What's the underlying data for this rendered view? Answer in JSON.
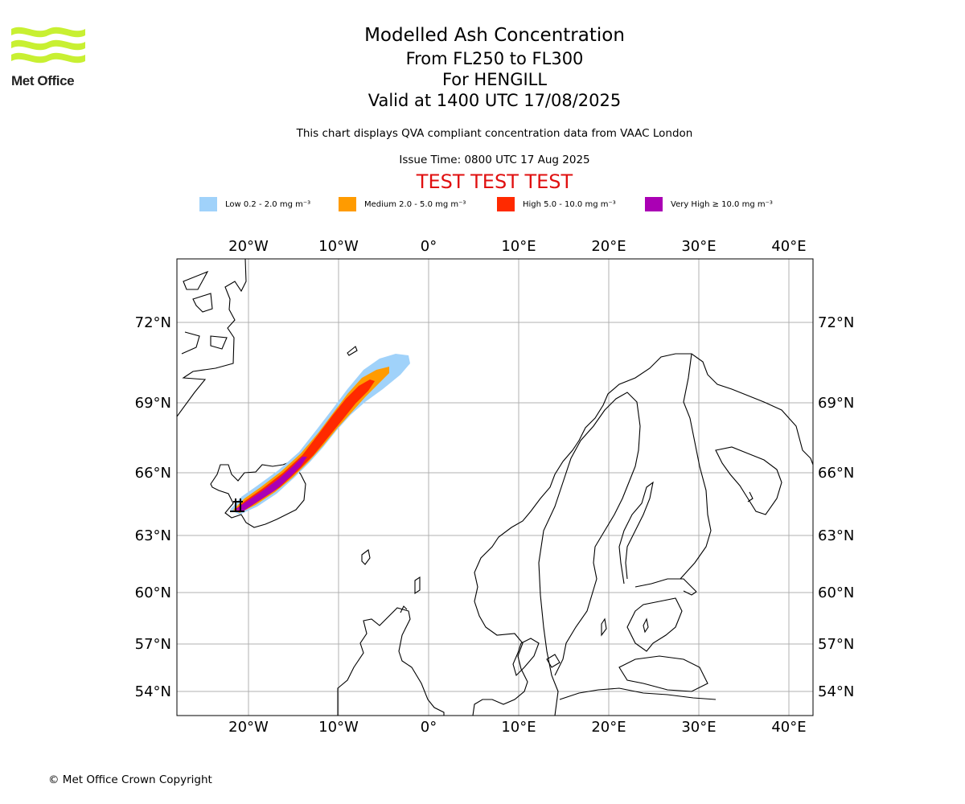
{
  "logo": {
    "text": "Met Office",
    "wave_color": "#c8f032"
  },
  "titles": {
    "line1": "Modelled Ash Concentration",
    "line2": "From FL250 to FL300",
    "line3": "For HENGILL",
    "line4": "Valid at 1400 UTC 17/08/2025"
  },
  "subtitle": "This chart displays QVA compliant concentration data from VAAC London",
  "issue_time": "Issue Time: 0800 UTC 17 Aug 2025",
  "test_banner": "TEST TEST TEST",
  "legend": [
    {
      "label": "Low 0.2 - 2.0 mg m⁻³",
      "color": "#a0d2fa"
    },
    {
      "label": "Medium 2.0 - 5.0 mg m⁻³",
      "color": "#ff9b00"
    },
    {
      "label": "High 5.0 - 10.0 mg m⁻³",
      "color": "#ff2a00"
    },
    {
      "label": "Very High ≥ 10.0 mg m⁻³",
      "color": "#aa00b4"
    }
  ],
  "map": {
    "lon_labels": [
      "20°W",
      "10°W",
      "0°",
      "10°E",
      "20°E",
      "30°E",
      "40°E"
    ],
    "lat_labels": [
      "72°N",
      "69°N",
      "66°N",
      "63°N",
      "60°N",
      "57°N",
      "54°N"
    ],
    "gridlines": true,
    "volcano": "HENGILL"
  },
  "copyright": "© Met Office Crown Copyright"
}
